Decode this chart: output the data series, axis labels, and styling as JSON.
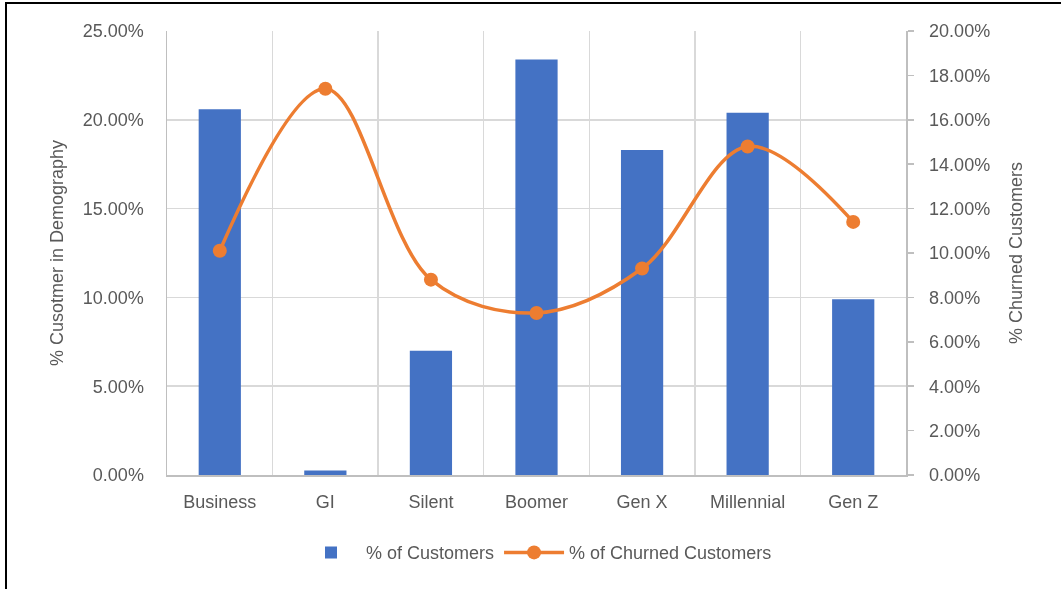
{
  "chart_data": {
    "type": "bar",
    "categories": [
      "Business",
      "GI",
      "Silent",
      "Boomer",
      "Gen X",
      "Millennial",
      "Gen Z"
    ],
    "series": [
      {
        "name": "% of Customers",
        "color": "#4472c4",
        "values": [
          20.6,
          0.25,
          7.0,
          23.4,
          18.3,
          20.4,
          9.9
        ]
      },
      {
        "name": "% of Churned Customers",
        "type": "line",
        "axis": "y2",
        "color": "#ed7d31",
        "values": [
          10.1,
          17.4,
          8.8,
          7.3,
          9.3,
          14.8,
          11.4
        ]
      }
    ],
    "ylabel": "% Cusotmer in Demography",
    "y2label": "% Churned Customers",
    "ylim": [
      0,
      25
    ],
    "yticks": [
      {
        "value": 0,
        "label": "0.00%"
      },
      {
        "value": 5,
        "label": "5.00%"
      },
      {
        "value": 10,
        "label": "10.00%"
      },
      {
        "value": 15,
        "label": "15.00%"
      },
      {
        "value": 20,
        "label": "20.00%"
      },
      {
        "value": 25,
        "label": "25.00%"
      }
    ],
    "y2lim": [
      0,
      20
    ],
    "y2ticks": [
      {
        "value": 0,
        "label": "0.00%"
      },
      {
        "value": 2,
        "label": "2.00%"
      },
      {
        "value": 4,
        "label": "4.00%"
      },
      {
        "value": 6,
        "label": "6.00%"
      },
      {
        "value": 8,
        "label": "8.00%"
      },
      {
        "value": 10,
        "label": "10.00%"
      },
      {
        "value": 12,
        "label": "12.00%"
      },
      {
        "value": 14,
        "label": "14.00%"
      },
      {
        "value": 16,
        "label": "16.00%"
      },
      {
        "value": 18,
        "label": "18.00%"
      },
      {
        "value": 20,
        "label": "20.00%"
      }
    ],
    "grid": true,
    "legend": "bottom",
    "marker": "circle",
    "line_style": "solid"
  }
}
